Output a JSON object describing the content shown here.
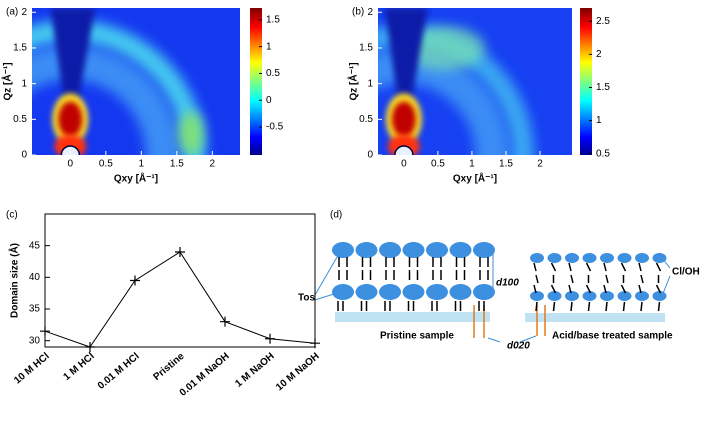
{
  "chart_data": [
    {
      "type": "heatmap",
      "panel_label": "(a)",
      "xlabel": "Qxy [Å⁻¹]",
      "ylabel": "Qz [Å⁻¹]",
      "xlim": [
        -0.54,
        2.39
      ],
      "xticks": [
        0,
        0.5,
        1,
        1.5,
        2
      ],
      "ylim": [
        0,
        2.06
      ],
      "yticks": [
        0,
        0.5,
        1,
        1.5,
        2
      ],
      "colorbar": {
        "lim": [
          -1.02,
          1.72
        ],
        "ticks": [
          -0.5,
          0,
          0.5,
          1,
          1.5
        ]
      }
    },
    {
      "type": "heatmap",
      "panel_label": "(b)",
      "xlabel": "Qxy [Å⁻¹]",
      "ylabel": "Qz [Å⁻¹]",
      "xlim": [
        -0.38,
        2.47
      ],
      "xticks": [
        0,
        0.5,
        1,
        1.5,
        2
      ],
      "ylim": [
        0,
        2.06
      ],
      "yticks": [
        0,
        0.5,
        1,
        1.5,
        2
      ],
      "colorbar": {
        "lim": [
          0.48,
          2.7
        ],
        "ticks": [
          0.5,
          1,
          1.5,
          2,
          2.5
        ]
      }
    },
    {
      "type": "line",
      "panel_label": "(c)",
      "ylabel": "Domain size (Å)",
      "categories": [
        "10 M HCl",
        "1 M HCl",
        "0.01 M HCl",
        "Pristine",
        "0.01 M NaOH",
        "1 M NaOH",
        "10 M NaOH"
      ],
      "values": [
        31.5,
        29,
        39.5,
        44,
        33,
        30.3,
        29.6
      ],
      "color": "#000000",
      "ylim": [
        29,
        50
      ],
      "yticks": [
        30,
        35,
        40,
        45
      ]
    }
  ],
  "diagram": {
    "panel_label": "(d)",
    "tos": "Tos",
    "d100": "d100",
    "cl_oh": "Cl/OH",
    "pristine": "Pristine sample",
    "d020": "d020",
    "treated": "Acid/base treated sample"
  }
}
